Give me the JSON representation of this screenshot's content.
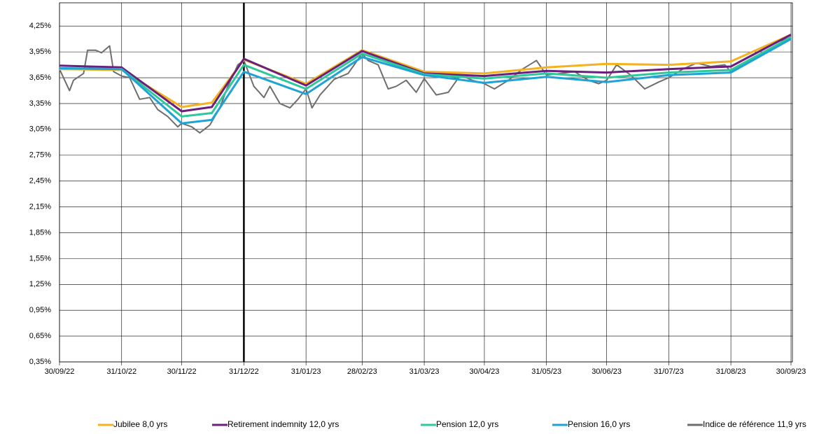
{
  "chart_data": {
    "type": "line",
    "x": [
      "2022-09-30",
      "2022-10-31",
      "2022-11-30",
      "2022-12-15",
      "2022-12-31",
      "2023-01-31",
      "2023-02-28",
      "2023-03-31",
      "2023-04-30",
      "2023-05-31",
      "2023-06-30",
      "2023-07-31",
      "2023-08-31",
      "2023-09-30"
    ],
    "series": [
      {
        "name": "Jubilee 8,0 yrs",
        "color": "#f5b21f",
        "values": [
          3.75,
          3.74,
          3.31,
          3.36,
          3.86,
          3.58,
          3.97,
          3.72,
          3.7,
          3.77,
          3.81,
          3.8,
          3.84,
          4.15
        ]
      },
      {
        "name": "Retirement indemnity 12,0 yrs",
        "color": "#6b1f7c",
        "values": [
          3.79,
          3.77,
          3.26,
          3.31,
          3.87,
          3.56,
          3.96,
          3.7,
          3.67,
          3.73,
          3.71,
          3.75,
          3.78,
          4.15
        ]
      },
      {
        "name": "Pension 12,0 yrs",
        "color": "#2ec99b",
        "values": [
          3.76,
          3.75,
          3.2,
          3.24,
          3.8,
          3.52,
          3.93,
          3.69,
          3.64,
          3.7,
          3.65,
          3.71,
          3.74,
          4.12
        ]
      },
      {
        "name": "Pension 16,0 yrs",
        "color": "#1fa3d6",
        "values": [
          3.76,
          3.75,
          3.12,
          3.16,
          3.72,
          3.46,
          3.89,
          3.68,
          3.59,
          3.66,
          3.6,
          3.68,
          3.71,
          4.1
        ]
      },
      {
        "name": "Indice de référence 11,9 yrs",
        "color": "#6e6e6e",
        "x": [
          "2022-09-30",
          "2022-10-05",
          "2022-10-07",
          "2022-10-12",
          "2022-10-14",
          "2022-10-18",
          "2022-10-21",
          "2022-10-25",
          "2022-10-27",
          "2022-10-31",
          "2022-11-04",
          "2022-11-09",
          "2022-11-14",
          "2022-11-18",
          "2022-11-23",
          "2022-11-28",
          "2022-11-30",
          "2022-12-05",
          "2022-12-09",
          "2022-12-14",
          "2022-12-19",
          "2022-12-23",
          "2022-12-28",
          "2022-12-31",
          "2023-01-05",
          "2023-01-10",
          "2023-01-13",
          "2023-01-18",
          "2023-01-23",
          "2023-01-27",
          "2023-01-31",
          "2023-02-03",
          "2023-02-07",
          "2023-02-14",
          "2023-02-21",
          "2023-02-28",
          "2023-03-03",
          "2023-03-08",
          "2023-03-13",
          "2023-03-17",
          "2023-03-22",
          "2023-03-27",
          "2023-03-31",
          "2023-04-06",
          "2023-04-12",
          "2023-04-18",
          "2023-04-24",
          "2023-04-30",
          "2023-05-05",
          "2023-05-12",
          "2023-05-19",
          "2023-05-26",
          "2023-05-31",
          "2023-06-07",
          "2023-06-14",
          "2023-06-21",
          "2023-06-26",
          "2023-06-30",
          "2023-07-05",
          "2023-07-12",
          "2023-07-19",
          "2023-07-26",
          "2023-07-31",
          "2023-08-07",
          "2023-08-14",
          "2023-08-21",
          "2023-08-28",
          "2023-08-31",
          "2023-09-07",
          "2023-09-14",
          "2023-09-21",
          "2023-09-26",
          "2023-09-30"
        ],
        "values": [
          3.75,
          3.5,
          3.62,
          3.7,
          3.97,
          3.97,
          3.94,
          4.02,
          3.72,
          3.67,
          3.65,
          3.4,
          3.42,
          3.28,
          3.2,
          3.08,
          3.12,
          3.08,
          3.01,
          3.1,
          3.3,
          3.55,
          3.8,
          3.85,
          3.55,
          3.42,
          3.55,
          3.35,
          3.3,
          3.4,
          3.52,
          3.3,
          3.45,
          3.63,
          3.7,
          3.93,
          3.85,
          3.8,
          3.52,
          3.55,
          3.62,
          3.48,
          3.64,
          3.45,
          3.48,
          3.68,
          3.62,
          3.58,
          3.52,
          3.62,
          3.75,
          3.85,
          3.68,
          3.7,
          3.72,
          3.62,
          3.58,
          3.62,
          3.8,
          3.68,
          3.52,
          3.6,
          3.65,
          3.75,
          3.82,
          3.78,
          3.8,
          3.72,
          3.82,
          3.9,
          3.98,
          4.08,
          4.12
        ]
      }
    ],
    "xlim": [
      "2022-09-30",
      "2023-09-30"
    ],
    "xticks": [
      {
        "value": "2022-09-30",
        "label": "30/09/22"
      },
      {
        "value": "2022-10-31",
        "label": "31/10/22"
      },
      {
        "value": "2022-11-30",
        "label": "30/11/22"
      },
      {
        "value": "2022-12-31",
        "label": "31/12/22"
      },
      {
        "value": "2023-01-31",
        "label": "31/01/23"
      },
      {
        "value": "2023-02-28",
        "label": "28/02/23"
      },
      {
        "value": "2023-03-31",
        "label": "31/03/23"
      },
      {
        "value": "2023-04-30",
        "label": "30/04/23"
      },
      {
        "value": "2023-05-31",
        "label": "31/05/23"
      },
      {
        "value": "2023-06-30",
        "label": "30/06/23"
      },
      {
        "value": "2023-07-31",
        "label": "31/07/23"
      },
      {
        "value": "2023-08-31",
        "label": "31/08/23"
      },
      {
        "value": "2023-09-30",
        "label": "30/09/23"
      }
    ],
    "ylim": [
      0.35,
      4.52
    ],
    "yticks": [
      {
        "value": 0.35,
        "label": "0,35%"
      },
      {
        "value": 0.65,
        "label": "0,65%"
      },
      {
        "value": 0.95,
        "label": "0,95%"
      },
      {
        "value": 1.25,
        "label": "1,25%"
      },
      {
        "value": 1.55,
        "label": "1,55%"
      },
      {
        "value": 1.85,
        "label": "1,85%"
      },
      {
        "value": 2.15,
        "label": "2,15%"
      },
      {
        "value": 2.45,
        "label": "2,45%"
      },
      {
        "value": 2.75,
        "label": "2,75%"
      },
      {
        "value": 3.05,
        "label": "3,05%"
      },
      {
        "value": 3.35,
        "label": "3,35%"
      },
      {
        "value": 3.65,
        "label": "3,65%"
      },
      {
        "value": 3.95,
        "label": "3,95%"
      },
      {
        "value": 4.25,
        "label": "4,25%"
      }
    ],
    "vline_x": "2022-12-31",
    "grid": true,
    "legend": "bottom"
  }
}
